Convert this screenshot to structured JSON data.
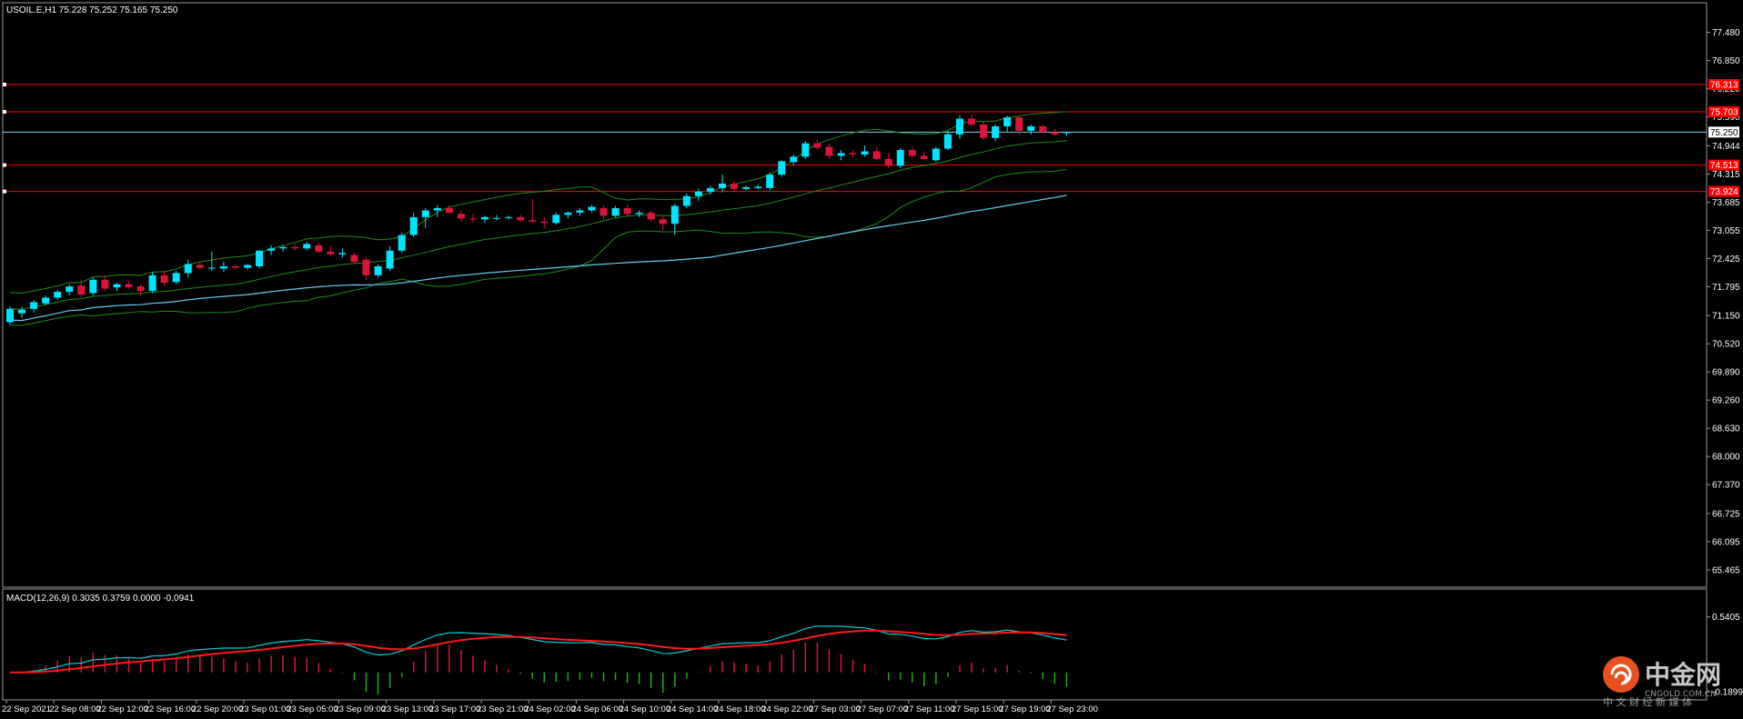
{
  "main": {
    "header": "USOIL.E,H1  75.228 75.252 75.165 75.250"
  },
  "macd_panel": {
    "header": "MACD(12,26,9) 0.3035 0.3759 0.0000 -0.0941"
  },
  "watermark": {
    "brand": "中金网",
    "url": "CNGOLD.COM.CN",
    "slogan": "中 文 财 经 新 媒 体"
  },
  "chart_data": [
    {
      "type": "candlestick",
      "symbol": "USOIL.E",
      "timeframe": "H1",
      "ohlc_current": {
        "open": 75.228,
        "high": 75.252,
        "low": 75.165,
        "close": 75.25
      },
      "ylim": [
        65.2,
        78.0
      ],
      "yticks": [
        "77.480",
        "76.850",
        "76.220",
        "75.590",
        "74.944",
        "74.315",
        "73.685",
        "73.055",
        "72.425",
        "71.795",
        "71.150",
        "70.520",
        "69.890",
        "69.260",
        "68.630",
        "68.000",
        "67.370",
        "66.725",
        "66.095",
        "65.465"
      ],
      "ytick_values": [
        77.48,
        76.85,
        76.22,
        75.59,
        74.944,
        74.315,
        73.685,
        73.055,
        72.425,
        71.795,
        71.15,
        70.52,
        69.89,
        69.26,
        68.63,
        68.0,
        67.37,
        66.725,
        66.095,
        65.465
      ],
      "xticks": [
        "22 Sep 2021",
        "22 Sep 08:00",
        "22 Sep 12:00",
        "22 Sep 16:00",
        "22 Sep 20:00",
        "23 Sep 01:00",
        "23 Sep 05:00",
        "23 Sep 09:00",
        "23 Sep 13:00",
        "23 Sep 17:00",
        "23 Sep 21:00",
        "24 Sep 02:00",
        "24 Sep 06:00",
        "24 Sep 10:00",
        "24 Sep 14:00",
        "24 Sep 18:00",
        "24 Sep 22:00",
        "27 Sep 03:00",
        "27 Sep 07:00",
        "27 Sep 11:00",
        "27 Sep 15:00",
        "27 Sep 19:00",
        "27 Sep 23:00"
      ],
      "xtick_bar_index": [
        0,
        4,
        8,
        12,
        16,
        20,
        24,
        28,
        32,
        36,
        40,
        44,
        48,
        52,
        56,
        60,
        64,
        68,
        72,
        76,
        80,
        84,
        88
      ],
      "current_price": {
        "label": "75.250",
        "value": 75.25,
        "color": "#87CEEB"
      },
      "levels": [
        {
          "label": "76.313",
          "value": 76.313
        },
        {
          "label": "75.703",
          "value": 75.703
        },
        {
          "label": "74.513",
          "value": 74.513
        },
        {
          "label": "73.924",
          "value": 73.924
        }
      ],
      "colors": {
        "bull": "#00E5FF",
        "bear": "#DC143C",
        "level": "#FF0000",
        "bollinger": "#1E8A1E",
        "ma": "#66CCEE"
      },
      "bars": [
        [
          71.0,
          71.35,
          70.95,
          71.3
        ],
        [
          71.2,
          71.35,
          71.1,
          71.28
        ],
        [
          71.3,
          71.5,
          71.22,
          71.45
        ],
        [
          71.42,
          71.6,
          71.38,
          71.55
        ],
        [
          71.55,
          71.72,
          71.5,
          71.68
        ],
        [
          71.68,
          71.85,
          71.6,
          71.8
        ],
        [
          71.82,
          71.95,
          71.55,
          71.62
        ],
        [
          71.65,
          72.0,
          71.6,
          71.95
        ],
        [
          71.95,
          72.05,
          71.7,
          71.75
        ],
        [
          71.78,
          71.88,
          71.7,
          71.85
        ],
        [
          71.85,
          71.92,
          71.75,
          71.78
        ],
        [
          71.8,
          71.85,
          71.6,
          71.7
        ],
        [
          71.7,
          72.12,
          71.65,
          72.05
        ],
        [
          72.05,
          72.15,
          71.8,
          71.88
        ],
        [
          71.9,
          72.15,
          71.85,
          72.1
        ],
        [
          72.1,
          72.4,
          72.0,
          72.3
        ],
        [
          72.28,
          72.35,
          72.18,
          72.22
        ],
        [
          72.2,
          72.58,
          72.15,
          72.22
        ],
        [
          72.2,
          72.35,
          72.12,
          72.25
        ],
        [
          72.25,
          72.3,
          72.18,
          72.22
        ],
        [
          72.22,
          72.3,
          72.18,
          72.28
        ],
        [
          72.25,
          72.62,
          72.2,
          72.6
        ],
        [
          72.6,
          72.72,
          72.5,
          72.65
        ],
        [
          72.65,
          72.72,
          72.58,
          72.68
        ],
        [
          72.68,
          72.75,
          72.6,
          72.65
        ],
        [
          72.65,
          72.8,
          72.6,
          72.75
        ],
        [
          72.72,
          72.78,
          72.55,
          72.58
        ],
        [
          72.58,
          72.7,
          72.48,
          72.52
        ],
        [
          72.52,
          72.65,
          72.45,
          72.55
        ],
        [
          72.5,
          72.55,
          72.3,
          72.35
        ],
        [
          72.4,
          72.45,
          71.95,
          72.05
        ],
        [
          72.05,
          72.3,
          72.0,
          72.25
        ],
        [
          72.2,
          72.7,
          72.15,
          72.6
        ],
        [
          72.6,
          73.0,
          72.55,
          72.95
        ],
        [
          72.95,
          73.45,
          72.9,
          73.35
        ],
        [
          73.35,
          73.55,
          73.1,
          73.5
        ],
        [
          73.5,
          73.62,
          73.35,
          73.55
        ],
        [
          73.55,
          73.62,
          73.42,
          73.45
        ],
        [
          73.42,
          73.5,
          73.25,
          73.32
        ],
        [
          73.32,
          73.42,
          73.22,
          73.3
        ],
        [
          73.3,
          73.38,
          73.22,
          73.35
        ],
        [
          73.32,
          73.4,
          73.28,
          73.33
        ],
        [
          73.33,
          73.38,
          73.3,
          73.35
        ],
        [
          73.35,
          73.4,
          73.25,
          73.28
        ],
        [
          73.28,
          73.75,
          73.22,
          73.25
        ],
        [
          73.25,
          73.35,
          73.1,
          73.22
        ],
        [
          73.22,
          73.45,
          73.18,
          73.4
        ],
        [
          73.4,
          73.48,
          73.32,
          73.45
        ],
        [
          73.45,
          73.55,
          73.38,
          73.5
        ],
        [
          73.5,
          73.62,
          73.45,
          73.58
        ],
        [
          73.55,
          73.6,
          73.3,
          73.38
        ],
        [
          73.38,
          73.6,
          73.35,
          73.55
        ],
        [
          73.55,
          73.62,
          73.38,
          73.42
        ],
        [
          73.42,
          73.5,
          73.35,
          73.45
        ],
        [
          73.45,
          73.5,
          73.25,
          73.3
        ],
        [
          73.3,
          73.38,
          73.05,
          73.2
        ],
        [
          73.2,
          73.65,
          72.95,
          73.6
        ],
        [
          73.6,
          73.88,
          73.55,
          73.82
        ],
        [
          73.82,
          73.98,
          73.72,
          73.92
        ],
        [
          73.92,
          74.05,
          73.85,
          74.0
        ],
        [
          74.0,
          74.3,
          73.9,
          74.1
        ],
        [
          74.1,
          74.15,
          73.92,
          73.98
        ],
        [
          73.98,
          74.05,
          73.95,
          74.02
        ],
        [
          74.0,
          74.08,
          73.98,
          74.03
        ],
        [
          74.0,
          74.35,
          73.95,
          74.3
        ],
        [
          74.3,
          74.62,
          74.25,
          74.6
        ],
        [
          74.58,
          74.75,
          74.5,
          74.7
        ],
        [
          74.7,
          75.05,
          74.65,
          75.0
        ],
        [
          75.0,
          75.08,
          74.85,
          74.9
        ],
        [
          74.92,
          75.0,
          74.65,
          74.72
        ],
        [
          74.72,
          74.85,
          74.62,
          74.78
        ],
        [
          74.78,
          74.85,
          74.68,
          74.75
        ],
        [
          74.75,
          74.95,
          74.7,
          74.82
        ],
        [
          74.82,
          74.9,
          74.62,
          74.65
        ],
        [
          74.65,
          74.78,
          74.45,
          74.5
        ],
        [
          74.5,
          74.9,
          74.45,
          74.85
        ],
        [
          74.85,
          74.92,
          74.68,
          74.72
        ],
        [
          74.72,
          74.82,
          74.62,
          74.65
        ],
        [
          74.62,
          74.92,
          74.58,
          74.88
        ],
        [
          74.88,
          75.28,
          74.85,
          75.2
        ],
        [
          75.2,
          75.62,
          75.1,
          75.55
        ],
        [
          75.55,
          75.65,
          75.38,
          75.42
        ],
        [
          75.42,
          75.5,
          75.08,
          75.12
        ],
        [
          75.12,
          75.42,
          75.05,
          75.38
        ],
        [
          75.38,
          75.62,
          75.25,
          75.58
        ],
        [
          75.58,
          75.6,
          75.2,
          75.28
        ],
        [
          75.28,
          75.42,
          75.2,
          75.38
        ],
        [
          75.38,
          75.4,
          75.22,
          75.25
        ],
        [
          75.25,
          75.32,
          75.18,
          75.2
        ],
        [
          75.228,
          75.252,
          75.165,
          75.25
        ]
      ]
    },
    {
      "type": "line+bar",
      "indicator": "MACD(12,26,9)",
      "values": {
        "main": 0.3035,
        "signal": 0.3759,
        "value3": 0.0,
        "value4": -0.0941
      },
      "ylim": [
        -0.25,
        0.75
      ],
      "yticks": [
        "0.5405",
        "-0.1899"
      ],
      "ytick_values": [
        0.5405,
        -0.1899
      ],
      "colors": {
        "main": "#00CED1",
        "signal": "#FF1A1A",
        "hist_pos": "#DC143C",
        "hist_neg": "#1FAA1F"
      }
    }
  ]
}
